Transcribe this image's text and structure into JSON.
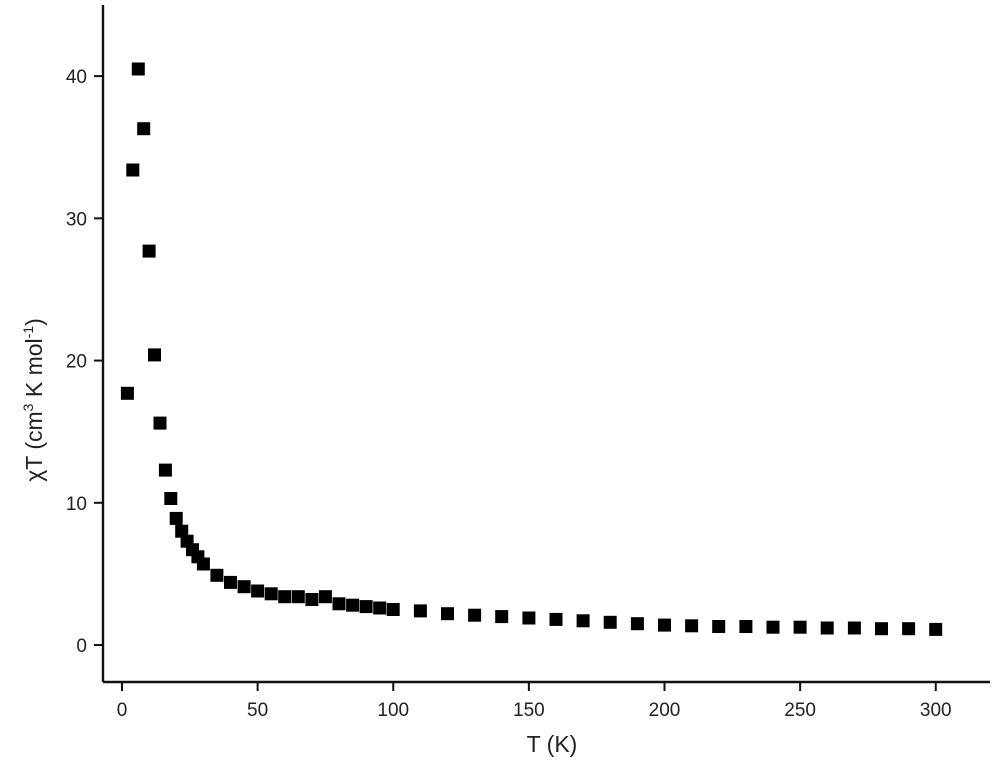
{
  "chart_data": {
    "type": "scatter",
    "title": "",
    "xlabel": "T (K)",
    "ylabel": {
      "main": "χT (cm",
      "sup1": "3",
      "mid": " K mol",
      "sup2": "-1",
      "end": ")"
    },
    "xlim": [
      -7,
      320
    ],
    "ylim": [
      -2.6,
      45
    ],
    "x_ticks": [
      0,
      50,
      100,
      150,
      200,
      250,
      300
    ],
    "y_ticks": [
      0,
      10,
      20,
      30,
      40
    ],
    "grid": false,
    "legend": "none",
    "marker": "square",
    "marker_color": "#000000",
    "series": [
      {
        "points": [
          [
            2,
            17.7
          ],
          [
            4,
            33.4
          ],
          [
            6,
            40.5
          ],
          [
            8,
            36.3
          ],
          [
            10,
            27.7
          ],
          [
            12,
            20.4
          ],
          [
            14,
            15.6
          ],
          [
            16,
            12.3
          ],
          [
            18,
            10.3
          ],
          [
            20,
            8.9
          ],
          [
            22,
            8.0
          ],
          [
            24,
            7.3
          ],
          [
            26,
            6.7
          ],
          [
            28,
            6.2
          ],
          [
            30,
            5.7
          ],
          [
            35,
            4.9
          ],
          [
            40,
            4.4
          ],
          [
            45,
            4.1
          ],
          [
            50,
            3.8
          ],
          [
            55,
            3.6
          ],
          [
            60,
            3.4
          ],
          [
            65,
            3.4
          ],
          [
            70,
            3.2
          ],
          [
            75,
            3.4
          ],
          [
            80,
            2.9
          ],
          [
            85,
            2.8
          ],
          [
            90,
            2.7
          ],
          [
            95,
            2.6
          ],
          [
            100,
            2.5
          ],
          [
            110,
            2.4
          ],
          [
            120,
            2.2
          ],
          [
            130,
            2.1
          ],
          [
            140,
            2.0
          ],
          [
            150,
            1.9
          ],
          [
            160,
            1.8
          ],
          [
            170,
            1.7
          ],
          [
            180,
            1.6
          ],
          [
            190,
            1.5
          ],
          [
            200,
            1.4
          ],
          [
            210,
            1.35
          ],
          [
            220,
            1.3
          ],
          [
            230,
            1.3
          ],
          [
            240,
            1.25
          ],
          [
            250,
            1.25
          ],
          [
            260,
            1.2
          ],
          [
            270,
            1.2
          ],
          [
            280,
            1.15
          ],
          [
            290,
            1.15
          ],
          [
            300,
            1.1
          ]
        ]
      }
    ]
  }
}
